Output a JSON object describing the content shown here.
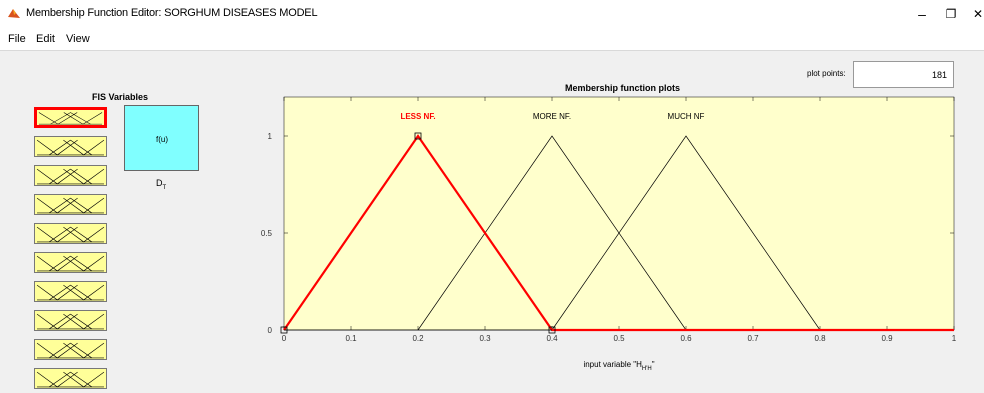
{
  "window": {
    "title": "Membership Function Editor: SORGHUM DISEASES MODEL",
    "minimize": "–",
    "restore": "❐",
    "close": "✕"
  },
  "menu": {
    "file": "File",
    "edit": "Edit",
    "view": "View"
  },
  "fis": {
    "title": "FIS Variables",
    "input_count": 10,
    "selected_index": 0,
    "output_box_label": "f(u)",
    "output_var_name": "D",
    "output_var_sub": "T"
  },
  "plot_points": {
    "label": "plot points:",
    "value": "181"
  },
  "plot": {
    "title": "Membership function plots",
    "xlabel_prefix": "input variable \"H",
    "xlabel_sub": "H'H",
    "xlabel_suffix": "\"",
    "mf_labels": [
      {
        "text": "LESS NF.",
        "selected": true
      },
      {
        "text": "MORE NF.",
        "selected": false
      },
      {
        "text": "MUCH NF",
        "selected": false
      }
    ],
    "yticks": [
      "0",
      "0.5",
      "1"
    ],
    "xticks": [
      "0",
      "0.1",
      "0.2",
      "0.3",
      "0.4",
      "0.5",
      "0.6",
      "0.7",
      "0.8",
      "0.9",
      "1"
    ],
    "colors": {
      "background": "#ffffcc",
      "selected": "#ff0000",
      "normal": "#000000"
    }
  },
  "chart_data": {
    "type": "line",
    "title": "Membership function plots",
    "xlim": [
      0,
      1
    ],
    "ylim": [
      0,
      1
    ],
    "series": [
      {
        "name": "LESS NF.",
        "x": [
          0,
          0.2,
          0.4,
          1
        ],
        "y": [
          0,
          1,
          0,
          0
        ]
      },
      {
        "name": "MORE NF.",
        "x": [
          0.2,
          0.4,
          0.6
        ],
        "y": [
          0,
          1,
          0
        ]
      },
      {
        "name": "MUCH NF",
        "x": [
          0.4,
          0.6,
          0.8
        ],
        "y": [
          0,
          1,
          0
        ]
      }
    ]
  }
}
